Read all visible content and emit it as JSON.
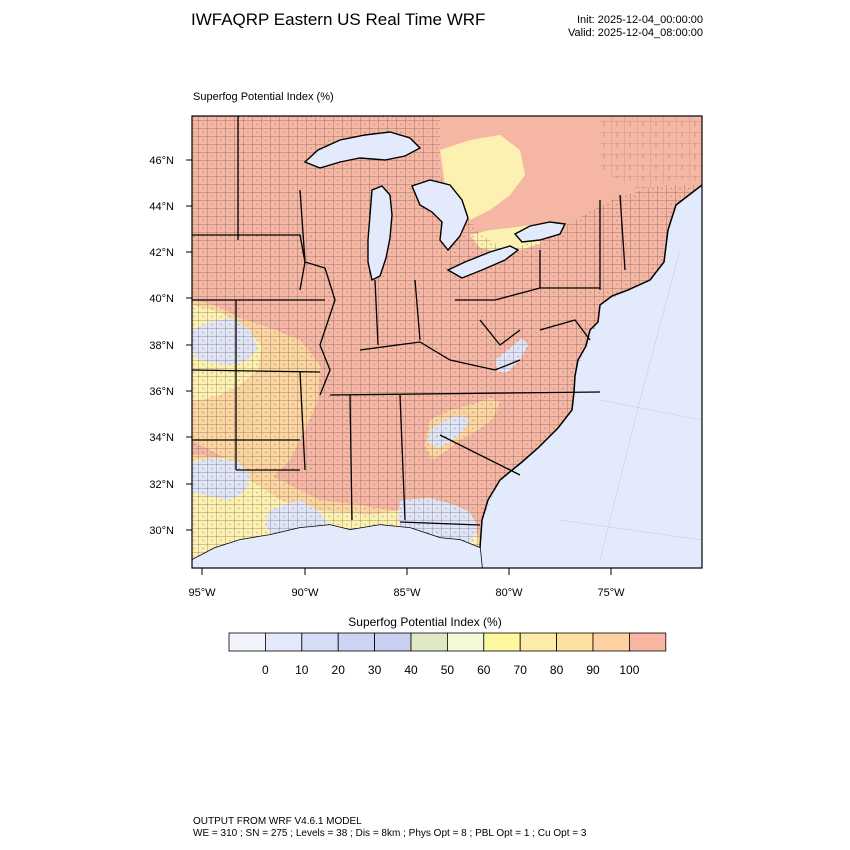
{
  "header": {
    "title": "IWFAQRP Eastern US Real Time WRF",
    "init": "Init: 2025-12-04_00:00:00",
    "valid": "Valid: 2025-12-04_08:00:00"
  },
  "map": {
    "subtitle": "Superfog Potential Index   (%)",
    "lat_labels": [
      "46°N",
      "44°N",
      "42°N",
      "40°N",
      "38°N",
      "36°N",
      "34°N",
      "32°N",
      "30°N"
    ],
    "lon_labels": [
      "95°W",
      "90°W",
      "85°W",
      "80°W",
      "75°W"
    ],
    "colors": {
      "ocean": "#e3eafb",
      "high": "#f5b7a4",
      "medium": "#fbd6a0",
      "lowmed": "#fdf1b2",
      "low": "#dfe5f6",
      "county_line": "#3a2a2a",
      "state_line": "#000000"
    }
  },
  "legend": {
    "title": "Superfog Potential Index  (%)",
    "ticks": [
      "0",
      "10",
      "20",
      "30",
      "40",
      "50",
      "60",
      "70",
      "80",
      "90",
      "100"
    ],
    "colors": [
      "#f2f4fb",
      "#e4e9fa",
      "#d5dcf6",
      "#ccd4f3",
      "#c9cff0",
      "#dfe9c6",
      "#f2f8d8",
      "#fdf7a0",
      "#fdeba8",
      "#fde1a0",
      "#fdd1a0",
      "#f9b7a3"
    ]
  },
  "footer": {
    "line1": "OUTPUT FROM WRF V4.6.1 MODEL",
    "line2": "WE = 310 ; SN = 275 ; Levels = 38 ; Dis = 8km ; Phys Opt = 8 ; PBL Opt = 1 ; Cu Opt = 3"
  }
}
